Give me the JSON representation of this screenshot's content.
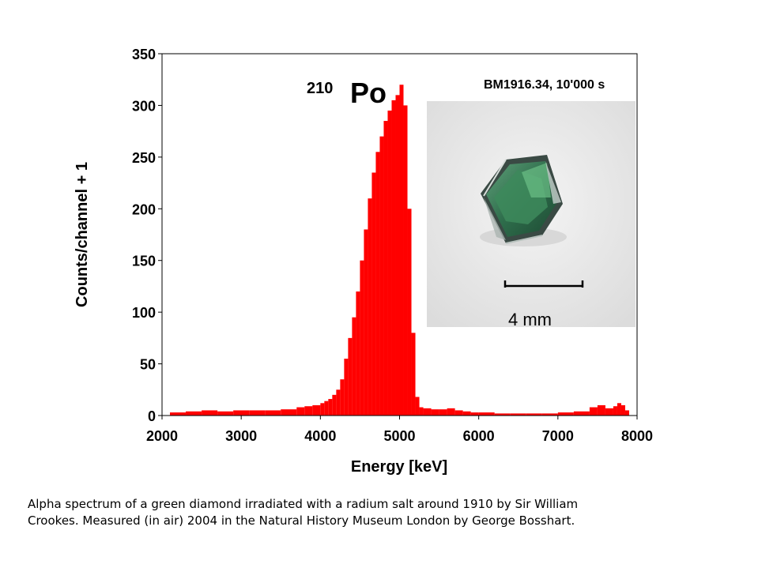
{
  "chart_data": {
    "type": "bar",
    "title": "",
    "xlabel": "Energy [keV]",
    "ylabel": "Counts/channel + 1",
    "xlim": [
      2000,
      8000
    ],
    "ylim": [
      0,
      350
    ],
    "xticks": [
      2000,
      3000,
      4000,
      5000,
      6000,
      7000,
      8000
    ],
    "yticks": [
      0,
      50,
      100,
      150,
      200,
      250,
      300,
      350
    ],
    "grid": false,
    "bar_color": "#ff0000",
    "series": [
      {
        "x": [
          2100,
          2300,
          2500,
          2700,
          2900,
          3100,
          3300,
          3500,
          3700,
          3800,
          3900,
          4000,
          4050,
          4100,
          4150,
          4200,
          4250,
          4300,
          4350,
          4400,
          4450,
          4500,
          4550,
          4600,
          4650,
          4700,
          4750,
          4800,
          4850,
          4900,
          4950,
          5000,
          5050,
          5100,
          5150,
          5200,
          5250,
          5300,
          5400,
          5500,
          5600,
          5700,
          5800,
          5900,
          6000,
          6200,
          6400,
          6600,
          6800,
          7000,
          7200,
          7400,
          7500,
          7600,
          7700,
          7750,
          7800,
          7850
        ],
        "values": [
          3,
          4,
          5,
          4,
          5,
          5,
          5,
          6,
          8,
          9,
          10,
          12,
          14,
          16,
          20,
          25,
          35,
          55,
          75,
          95,
          120,
          150,
          180,
          210,
          235,
          255,
          270,
          285,
          295,
          305,
          310,
          320,
          300,
          200,
          80,
          18,
          8,
          7,
          6,
          6,
          7,
          5,
          4,
          3,
          3,
          2,
          2,
          2,
          2,
          3,
          4,
          8,
          10,
          7,
          9,
          12,
          10,
          5
        ]
      }
    ]
  },
  "annotations": {
    "isotope_mass": "210",
    "isotope_symbol": "Po",
    "sample_label": "BM1916.34, 10'000 s",
    "scale_label": "4 mm"
  },
  "caption": {
    "line1": "Alpha spectrum of a green diamond irradiated with a radium salt around 1910 by Sir William",
    "line2": "Crookes. Measured (in air) 2004 in the Natural History Museum London by George Bosshart."
  }
}
